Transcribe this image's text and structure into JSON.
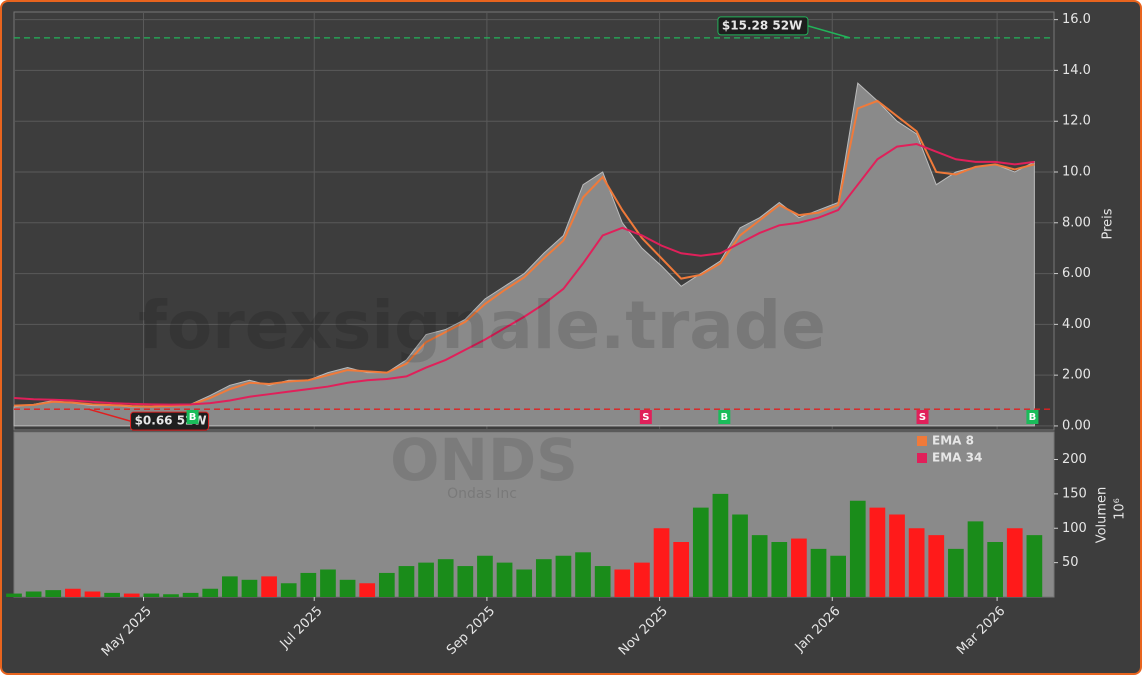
{
  "chart_data": {
    "type": "stock",
    "watermark": "forexsignale.trade",
    "symbol": "ONDS",
    "company": "Ondas Inc",
    "x": [
      0,
      1,
      2,
      3,
      4,
      5,
      6,
      7,
      8,
      9,
      10,
      11,
      12,
      13,
      14,
      15,
      16,
      17,
      18,
      19,
      20,
      21,
      22,
      23,
      24,
      25,
      26,
      27,
      28,
      29,
      30,
      31,
      32,
      33,
      34,
      35,
      36,
      37,
      38,
      39,
      40,
      41,
      42,
      43,
      44,
      45,
      46,
      47,
      48,
      49,
      50,
      51,
      52
    ],
    "xlim": [
      0,
      53
    ],
    "xticks": [
      {
        "value": 6.6,
        "label": "May 2025"
      },
      {
        "value": 15.3,
        "label": "Jul 2025"
      },
      {
        "value": 24.1,
        "label": "Sep 2025"
      },
      {
        "value": 32.9,
        "label": "Nov 2025"
      },
      {
        "value": 41.7,
        "label": "Jan 2026"
      },
      {
        "value": 50.1,
        "label": "Mar 2026"
      }
    ],
    "price_label": "Preis",
    "ylim": [
      -0.16,
      16.3
    ],
    "yticks": [
      {
        "value": 0,
        "label": "0.00"
      },
      {
        "value": 2,
        "label": "2.00"
      },
      {
        "value": 4,
        "label": "4.00"
      },
      {
        "value": 6,
        "label": "6.00"
      },
      {
        "value": 8,
        "label": "8.00"
      },
      {
        "value": 10,
        "label": "10.0"
      },
      {
        "value": 12,
        "label": "12.0"
      },
      {
        "value": 14,
        "label": "14.0"
      },
      {
        "value": 16,
        "label": "16.0"
      }
    ],
    "grid": true,
    "close": {
      "color": "#8a8a8a",
      "values": [
        0.75,
        0.85,
        1.0,
        0.9,
        0.8,
        0.8,
        0.75,
        0.75,
        0.8,
        0.85,
        1.2,
        1.6,
        1.8,
        1.6,
        1.8,
        1.8,
        2.1,
        2.3,
        2.1,
        2.1,
        2.6,
        3.6,
        3.8,
        4.2,
        5.0,
        5.5,
        6.0,
        6.8,
        7.5,
        9.5,
        10.0,
        8.0,
        7.0,
        6.3,
        5.5,
        6.0,
        6.5,
        7.8,
        8.2,
        8.8,
        8.2,
        8.5,
        8.8,
        13.5,
        12.8,
        12.0,
        11.5,
        9.5,
        10.0,
        10.2,
        10.3,
        10.0,
        10.4
      ]
    },
    "series": [
      {
        "name": "EMA 8",
        "color": "#f07a3a",
        "values": [
          0.8,
          0.83,
          0.95,
          0.92,
          0.85,
          0.82,
          0.78,
          0.76,
          0.79,
          0.83,
          1.1,
          1.45,
          1.7,
          1.65,
          1.75,
          1.8,
          2.0,
          2.2,
          2.15,
          2.1,
          2.45,
          3.3,
          3.7,
          4.1,
          4.8,
          5.35,
          5.85,
          6.6,
          7.3,
          9.0,
          9.8,
          8.5,
          7.4,
          6.6,
          5.8,
          5.95,
          6.4,
          7.5,
          8.1,
          8.7,
          8.3,
          8.4,
          8.7,
          12.5,
          12.8,
          12.2,
          11.6,
          10.0,
          9.9,
          10.2,
          10.3,
          10.1,
          10.3
        ]
      },
      {
        "name": "EMA 34",
        "color": "#e0205a",
        "values": [
          1.1,
          1.05,
          1.03,
          1.0,
          0.95,
          0.9,
          0.87,
          0.85,
          0.84,
          0.85,
          0.9,
          1.0,
          1.15,
          1.25,
          1.35,
          1.45,
          1.55,
          1.7,
          1.8,
          1.85,
          1.95,
          2.3,
          2.6,
          3.0,
          3.4,
          3.85,
          4.3,
          4.8,
          5.4,
          6.4,
          7.5,
          7.8,
          7.5,
          7.1,
          6.8,
          6.7,
          6.8,
          7.2,
          7.6,
          7.9,
          8.0,
          8.2,
          8.5,
          9.5,
          10.5,
          11.0,
          11.1,
          10.8,
          10.5,
          10.4,
          10.4,
          10.3,
          10.4
        ]
      }
    ],
    "high": {
      "text": "$15.28 52W",
      "value": 15.28,
      "x": 42.6,
      "color": "#22b35a"
    },
    "low": {
      "text": "$0.66 52W",
      "value": 0.66,
      "x": 3.8,
      "color": "#e02020"
    },
    "signals": [
      {
        "x": 9.1,
        "label": "B",
        "color": "#1abc5a"
      },
      {
        "x": 32.2,
        "label": "S",
        "color": "#e0205a"
      },
      {
        "x": 36.2,
        "label": "B",
        "color": "#1abc5a"
      },
      {
        "x": 46.3,
        "label": "S",
        "color": "#e0205a"
      },
      {
        "x": 51.9,
        "label": "B",
        "color": "#1abc5a"
      }
    ],
    "volume": {
      "label": "Volumen",
      "unit": "10⁶",
      "up_color": "#1a8c1a",
      "down_color": "#ff1a1a",
      "values": [
        5,
        8,
        10,
        12,
        8,
        6,
        5,
        5,
        4,
        6,
        12,
        30,
        25,
        30,
        20,
        35,
        40,
        25,
        20,
        35,
        45,
        50,
        55,
        45,
        60,
        50,
        40,
        55,
        60,
        65,
        45,
        40,
        50,
        100,
        80,
        130,
        150,
        120,
        90,
        80,
        85,
        70,
        60,
        140,
        130,
        120,
        100,
        90,
        70,
        110,
        80,
        100,
        90
      ],
      "ylim": [
        0,
        240
      ],
      "yticks": [
        50,
        100,
        150,
        200
      ]
    }
  }
}
